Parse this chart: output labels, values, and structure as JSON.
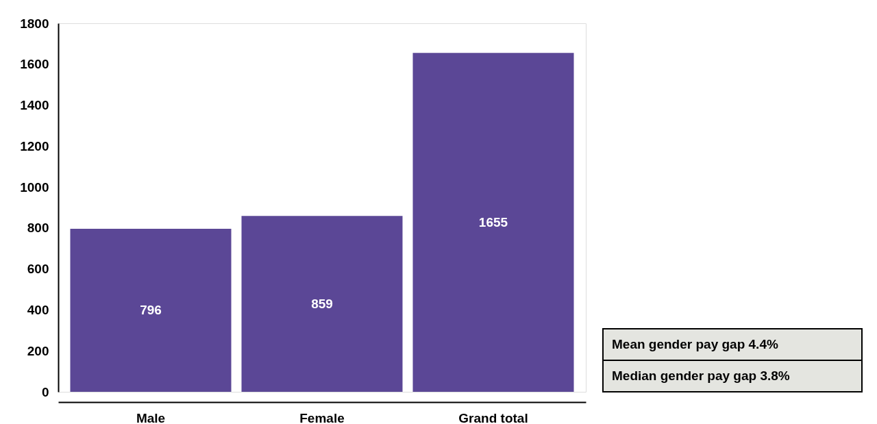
{
  "chart_data": {
    "type": "bar",
    "categories": [
      "Male",
      "Female",
      "Grand total"
    ],
    "values": [
      796,
      859,
      1655
    ],
    "color": "#5b4796",
    "ylim": [
      0,
      1800
    ],
    "yticks": [
      0,
      200,
      400,
      600,
      800,
      1000,
      1200,
      1400,
      1600,
      1800
    ],
    "data_labels": true,
    "grid": false,
    "annotations": [
      "Mean gender pay gap 4.4%",
      "Median gender pay gap 3.8%"
    ]
  }
}
